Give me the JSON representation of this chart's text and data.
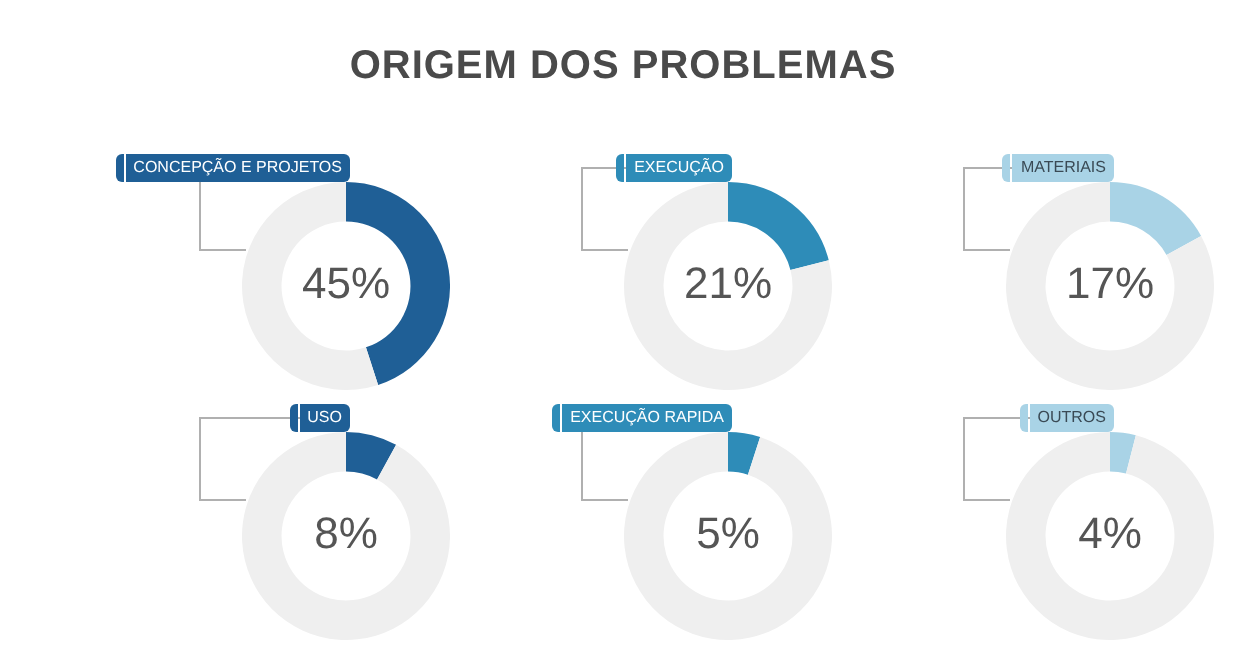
{
  "chart_data": [
    {
      "type": "donut",
      "title": "ORIGEM DOS PROBLEMAS",
      "categories": [
        "CONCEPÇÃO E PROJETOS",
        null
      ],
      "values": [
        45,
        55
      ],
      "colors": [
        "#1f5f96",
        "#efefef"
      ],
      "value_labels": [
        "45%",
        null
      ]
    },
    {
      "type": "donut",
      "categories": [
        "EXECUÇÃO",
        null
      ],
      "values": [
        21,
        79
      ],
      "colors": [
        "#2e8cb8",
        "#efefef"
      ],
      "value_labels": [
        "21%",
        null
      ]
    },
    {
      "type": "donut",
      "categories": [
        "MATERIAIS",
        null
      ],
      "values": [
        17,
        83
      ],
      "colors": [
        "#a9d3e6",
        "#efefef"
      ],
      "value_labels": [
        "17%",
        null
      ]
    },
    {
      "type": "donut",
      "categories": [
        "USO",
        null
      ],
      "values": [
        8,
        92
      ],
      "colors": [
        "#1f5f96",
        "#efefef"
      ],
      "value_labels": [
        "8%",
        null
      ]
    },
    {
      "type": "donut",
      "categories": [
        "EXECUÇÃO RAPIDA",
        null
      ],
      "values": [
        5,
        95
      ],
      "colors": [
        "#2e8cb8",
        "#efefef"
      ],
      "value_labels": [
        "5%",
        null
      ]
    },
    {
      "type": "donut",
      "categories": [
        "OUTROS",
        null
      ],
      "values": [
        4,
        96
      ],
      "colors": [
        "#a9d3e6",
        "#efefef"
      ],
      "value_labels": [
        "4%",
        null
      ]
    }
  ]
}
